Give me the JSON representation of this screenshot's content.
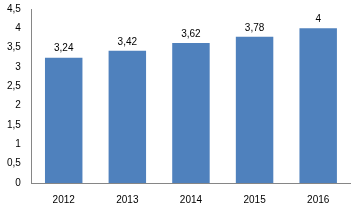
{
  "chart_data": {
    "type": "bar",
    "categories": [
      "2012",
      "2013",
      "2014",
      "2015",
      "2016"
    ],
    "values": [
      3.24,
      3.42,
      3.62,
      3.78,
      4
    ],
    "value_labels": [
      "3,24",
      "3,42",
      "3,62",
      "3,78",
      "4"
    ],
    "data_labels": true,
    "color": "#4f81bd",
    "ylim": [
      0,
      4.5
    ],
    "yticks": [
      0,
      {
        "value": 0.5,
        "label": "0,5"
      },
      1,
      {
        "value": 1.5,
        "label": "1,5"
      },
      2,
      {
        "value": 2.5,
        "label": "2,5"
      },
      3,
      {
        "value": 3.5,
        "label": "3,5"
      },
      4,
      {
        "value": 4.5,
        "label": "4,5"
      }
    ],
    "grid": false
  }
}
